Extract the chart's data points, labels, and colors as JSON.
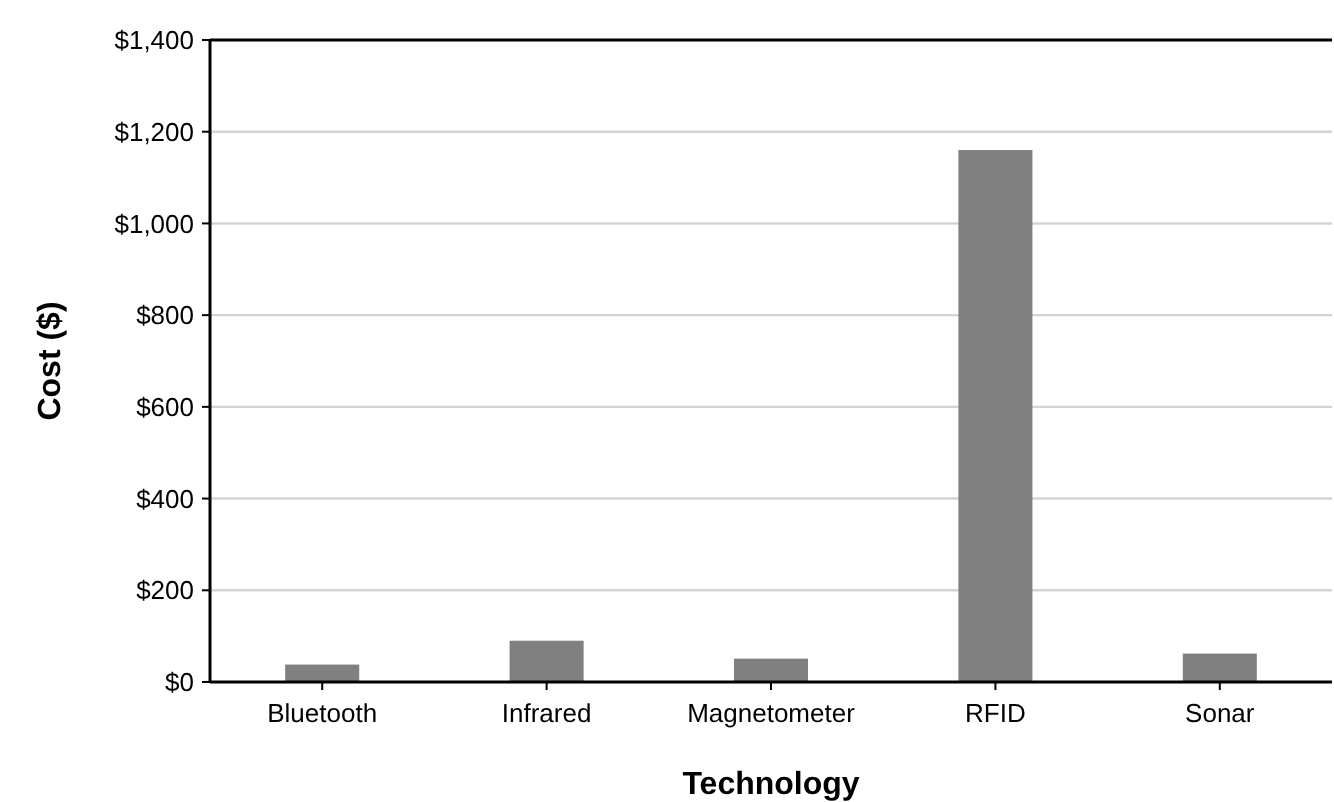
{
  "chart_data": {
    "type": "bar",
    "xlabel": "Technology",
    "ylabel": "Cost ($)",
    "categories": [
      "Bluetooth",
      "Infrared",
      "Magnetometer",
      "RFID",
      "Sonar"
    ],
    "values": [
      38,
      90,
      51,
      1160,
      62
    ],
    "color": "#808080",
    "ylim": [
      0,
      1400
    ],
    "yticks": [
      {
        "value": 0,
        "label": "$0"
      },
      {
        "value": 200,
        "label": "$200"
      },
      {
        "value": 400,
        "label": "$400"
      },
      {
        "value": 600,
        "label": "$600"
      },
      {
        "value": 800,
        "label": "$800"
      },
      {
        "value": 1000,
        "label": "$1,000"
      },
      {
        "value": 1200,
        "label": "$1,200"
      },
      {
        "value": 1400,
        "label": "$1,400"
      }
    ],
    "grid": "y"
  }
}
